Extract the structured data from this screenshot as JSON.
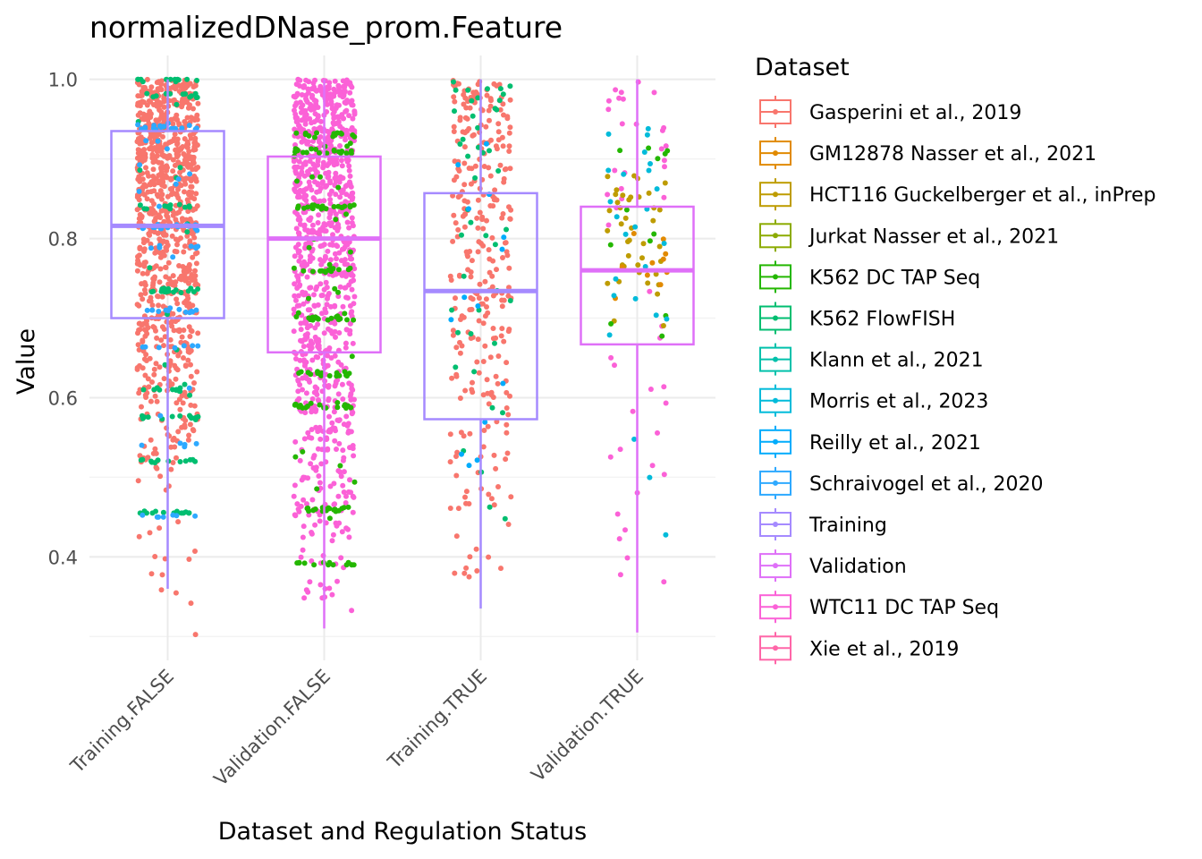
{
  "chart_data": {
    "type": "box+jitter",
    "title": "normalizedDNase_prom.Feature",
    "xlabel": "Dataset and Regulation Status",
    "ylabel": "Value",
    "categories": [
      "Training.FALSE",
      "Validation.FALSE",
      "Training.TRUE",
      "Validation.TRUE"
    ],
    "y_ticks": [
      "0.4",
      "0.6",
      "0.8",
      "1.0"
    ],
    "y_tick_values": [
      0.4,
      0.6,
      0.8,
      1.0
    ],
    "ylim": [
      0.27,
      1.03
    ],
    "grid": true,
    "legend_position": "right",
    "legend_title": "Dataset",
    "legend": [
      {
        "label": "Gasperini et al., 2019",
        "color": "#F8766D"
      },
      {
        "label": "GM12878 Nasser et al., 2021",
        "color": "#E18A00"
      },
      {
        "label": "HCT116 Guckelberger et al., inPrep",
        "color": "#BE9C00"
      },
      {
        "label": "Jurkat Nasser et al., 2021",
        "color": "#8CAB00"
      },
      {
        "label": "K562 DC TAP Seq",
        "color": "#24B700"
      },
      {
        "label": "K562 FlowFISH",
        "color": "#00BE70"
      },
      {
        "label": "Klann et al., 2021",
        "color": "#00C1AB"
      },
      {
        "label": "Morris et al., 2023",
        "color": "#00BBDA"
      },
      {
        "label": "Reilly et al., 2021",
        "color": "#00ACFC"
      },
      {
        "label": "Schraivogel et al., 2020",
        "color": "#2EA9FF"
      },
      {
        "label": "Training",
        "color": "#A58AFF"
      },
      {
        "label": "Validation",
        "color": "#DF70F8"
      },
      {
        "label": "WTC11 DC TAP Seq",
        "color": "#FB61D7"
      },
      {
        "label": "Xie et al., 2019",
        "color": "#FF66A8"
      }
    ],
    "boxes": [
      {
        "category": "Training.FALSE",
        "group": "Training",
        "min": 0.36,
        "q1": 0.7,
        "median": 0.816,
        "q3": 0.935,
        "max": 1.0,
        "bands": [
          {
            "dataset": "Gasperini et al., 2019",
            "from": 0.46,
            "to": 1.0,
            "count": 900,
            "min": 0.3
          },
          {
            "dataset": "K562 FlowFISH",
            "from": 0.455,
            "to": 1.0,
            "count": 120,
            "levels": [
              0.455,
              0.52,
              0.575,
              0.61,
              0.735,
              0.84,
              0.98,
              1.0
            ]
          },
          {
            "dataset": "Schraivogel et al., 2020",
            "from": 0.45,
            "to": 0.96,
            "count": 90,
            "levels": [
              0.45,
              0.54,
              0.665,
              0.71,
              0.79,
              0.815,
              0.94
            ]
          }
        ]
      },
      {
        "category": "Validation.FALSE",
        "group": "Validation",
        "min": 0.31,
        "q1": 0.657,
        "median": 0.8,
        "q3": 0.903,
        "max": 1.0,
        "bands": [
          {
            "dataset": "WTC11 DC TAP Seq",
            "from": 0.31,
            "to": 1.0,
            "count": 950
          },
          {
            "dataset": "K562 DC TAP Seq",
            "from": 0.39,
            "to": 0.95,
            "count": 180,
            "levels": [
              0.39,
              0.46,
              0.59,
              0.63,
              0.7,
              0.76,
              0.84,
              0.91,
              0.93
            ]
          }
        ]
      },
      {
        "category": "Training.TRUE",
        "group": "Training",
        "min": 0.335,
        "q1": 0.573,
        "median": 0.734,
        "q3": 0.857,
        "max": 1.0,
        "bands": [
          {
            "dataset": "Gasperini et al., 2019",
            "from": 0.335,
            "to": 1.0,
            "count": 300
          },
          {
            "dataset": "K562 FlowFISH",
            "from": 0.335,
            "to": 1.0,
            "count": 45
          },
          {
            "dataset": "Reilly et al., 2021",
            "from": 0.44,
            "to": 0.96,
            "count": 14
          }
        ]
      },
      {
        "category": "Validation.TRUE",
        "group": "Validation",
        "min": 0.305,
        "q1": 0.667,
        "median": 0.76,
        "q3": 0.84,
        "max": 1.0,
        "bands": [
          {
            "dataset": "WTC11 DC TAP Seq",
            "from": 0.305,
            "to": 1.0,
            "count": 45
          },
          {
            "dataset": "HCT116 Guckelberger et al., inPrep",
            "from": 0.67,
            "to": 0.885,
            "count": 40
          },
          {
            "dataset": "GM12878 Nasser et al., 2021",
            "from": 0.67,
            "to": 0.84,
            "count": 10
          },
          {
            "dataset": "K562 DC TAP Seq",
            "from": 0.54,
            "to": 0.94,
            "count": 12
          },
          {
            "dataset": "Morris et al., 2023",
            "from": 0.32,
            "to": 0.96,
            "count": 25
          }
        ]
      }
    ]
  }
}
